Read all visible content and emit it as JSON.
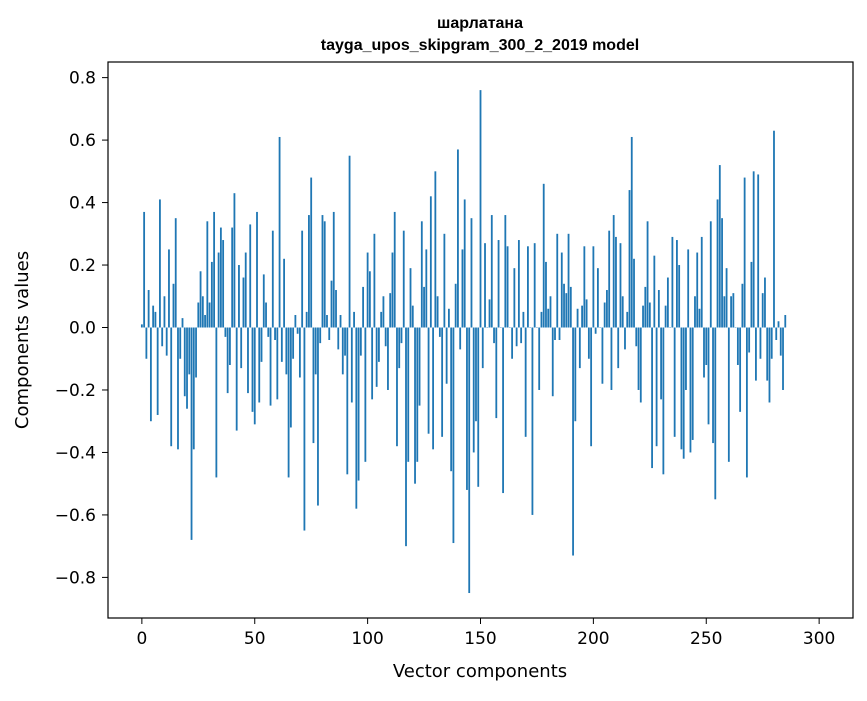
{
  "chart_data": {
    "type": "bar",
    "title_line1": "шарлатана",
    "title_line2": "tayga_upos_skipgram_300_2_2019 model",
    "xlabel": "Vector components",
    "ylabel": "Components values",
    "xlim": [
      -15,
      315
    ],
    "ylim": [
      -0.93,
      0.85
    ],
    "bar_color": "#1f77b4",
    "grid": false,
    "x_ticks": [
      {
        "value": 0,
        "label": "0"
      },
      {
        "value": 50,
        "label": "50"
      },
      {
        "value": 100,
        "label": "100"
      },
      {
        "value": 150,
        "label": "150"
      },
      {
        "value": 200,
        "label": "200"
      },
      {
        "value": 250,
        "label": "250"
      },
      {
        "value": 300,
        "label": "300"
      }
    ],
    "y_ticks": [
      {
        "value": 0.8,
        "label": "0.8"
      },
      {
        "value": 0.6,
        "label": "0.6"
      },
      {
        "value": 0.4,
        "label": "0.4"
      },
      {
        "value": 0.2,
        "label": "0.2"
      },
      {
        "value": 0.0,
        "label": "0.0"
      },
      {
        "value": -0.2,
        "label": "−0.2"
      },
      {
        "value": -0.4,
        "label": "−0.4"
      },
      {
        "value": -0.6,
        "label": "−0.6"
      },
      {
        "value": -0.8,
        "label": "−0.8"
      }
    ],
    "values": [
      0.01,
      0.37,
      -0.1,
      0.12,
      -0.3,
      0.07,
      0.05,
      -0.28,
      0.41,
      -0.06,
      0.1,
      -0.09,
      0.25,
      -0.38,
      0.14,
      0.35,
      -0.39,
      -0.1,
      0.03,
      -0.22,
      -0.26,
      -0.15,
      -0.68,
      -0.39,
      -0.16,
      0.08,
      0.18,
      0.1,
      0.04,
      0.34,
      0.08,
      0.21,
      0.37,
      -0.48,
      0.24,
      0.32,
      0.28,
      -0.03,
      -0.21,
      -0.12,
      0.32,
      0.43,
      -0.33,
      0.2,
      -0.13,
      0.16,
      0.24,
      -0.21,
      0.33,
      -0.27,
      -0.31,
      0.37,
      -0.24,
      -0.11,
      0.17,
      0.08,
      -0.03,
      -0.25,
      0.31,
      -0.04,
      -0.23,
      0.61,
      -0.11,
      0.22,
      -0.15,
      -0.48,
      -0.32,
      -0.1,
      0.04,
      -0.02,
      -0.16,
      0.31,
      -0.65,
      0.05,
      0.36,
      0.48,
      -0.37,
      -0.15,
      -0.57,
      -0.05,
      0.36,
      0.34,
      0.04,
      -0.04,
      0.15,
      0.37,
      0.12,
      -0.07,
      0.04,
      -0.15,
      -0.09,
      -0.47,
      0.55,
      -0.24,
      0.05,
      -0.58,
      -0.49,
      -0.09,
      0.13,
      -0.43,
      0.24,
      0.18,
      -0.23,
      0.3,
      -0.19,
      -0.11,
      0.05,
      0.1,
      -0.06,
      -0.2,
      0.11,
      0.24,
      0.37,
      -0.38,
      -0.13,
      -0.05,
      0.31,
      -0.7,
      -0.43,
      0.19,
      0.07,
      -0.5,
      -0.43,
      -0.25,
      0.34,
      0.13,
      0.25,
      -0.34,
      0.42,
      -0.39,
      0.5,
      0.1,
      -0.03,
      -0.35,
      0.3,
      -0.18,
      0.06,
      -0.46,
      -0.69,
      0.14,
      0.57,
      -0.07,
      0.25,
      0.41,
      -0.52,
      -0.85,
      0.35,
      -0.4,
      -0.3,
      -0.51,
      0.76,
      -0.13,
      0.27,
      0.0,
      0.09,
      0.36,
      -0.05,
      -0.29,
      0.28,
      0.0,
      -0.53,
      0.36,
      0.26,
      0.0,
      -0.1,
      0.19,
      -0.06,
      0.28,
      -0.05,
      0.05,
      -0.35,
      0.26,
      0.0,
      -0.6,
      0.27,
      0.0,
      -0.2,
      0.05,
      0.46,
      0.21,
      0.06,
      0.1,
      -0.22,
      -0.04,
      0.3,
      -0.04,
      0.24,
      0.14,
      0.11,
      0.3,
      0.13,
      -0.73,
      -0.3,
      0.06,
      -0.13,
      0.07,
      0.26,
      0.09,
      -0.1,
      -0.38,
      0.26,
      -0.02,
      0.19,
      0.0,
      -0.18,
      0.08,
      0.12,
      0.31,
      -0.2,
      0.36,
      0.29,
      -0.13,
      0.27,
      0.1,
      -0.07,
      0.05,
      0.44,
      0.61,
      0.22,
      -0.06,
      -0.2,
      -0.24,
      0.07,
      0.13,
      0.34,
      0.08,
      -0.45,
      0.23,
      -0.38,
      0.12,
      -0.23,
      -0.47,
      0.07,
      0.16,
      0.0,
      0.29,
      -0.35,
      0.28,
      0.2,
      -0.39,
      -0.42,
      -0.2,
      0.25,
      -0.4,
      -0.36,
      0.1,
      0.24,
      0.06,
      0.29,
      -0.16,
      -0.12,
      -0.31,
      0.34,
      -0.37,
      -0.55,
      0.41,
      0.52,
      0.35,
      0.1,
      0.19,
      -0.43,
      0.1,
      0.11,
      0.0,
      -0.12,
      -0.27,
      0.14,
      0.48,
      -0.48,
      -0.08,
      0.21,
      0.5,
      -0.17,
      0.49,
      -0.1,
      0.11,
      0.16,
      -0.17,
      -0.24,
      -0.1,
      0.63,
      -0.04,
      0.02,
      -0.09,
      -0.2,
      0.04
    ]
  }
}
